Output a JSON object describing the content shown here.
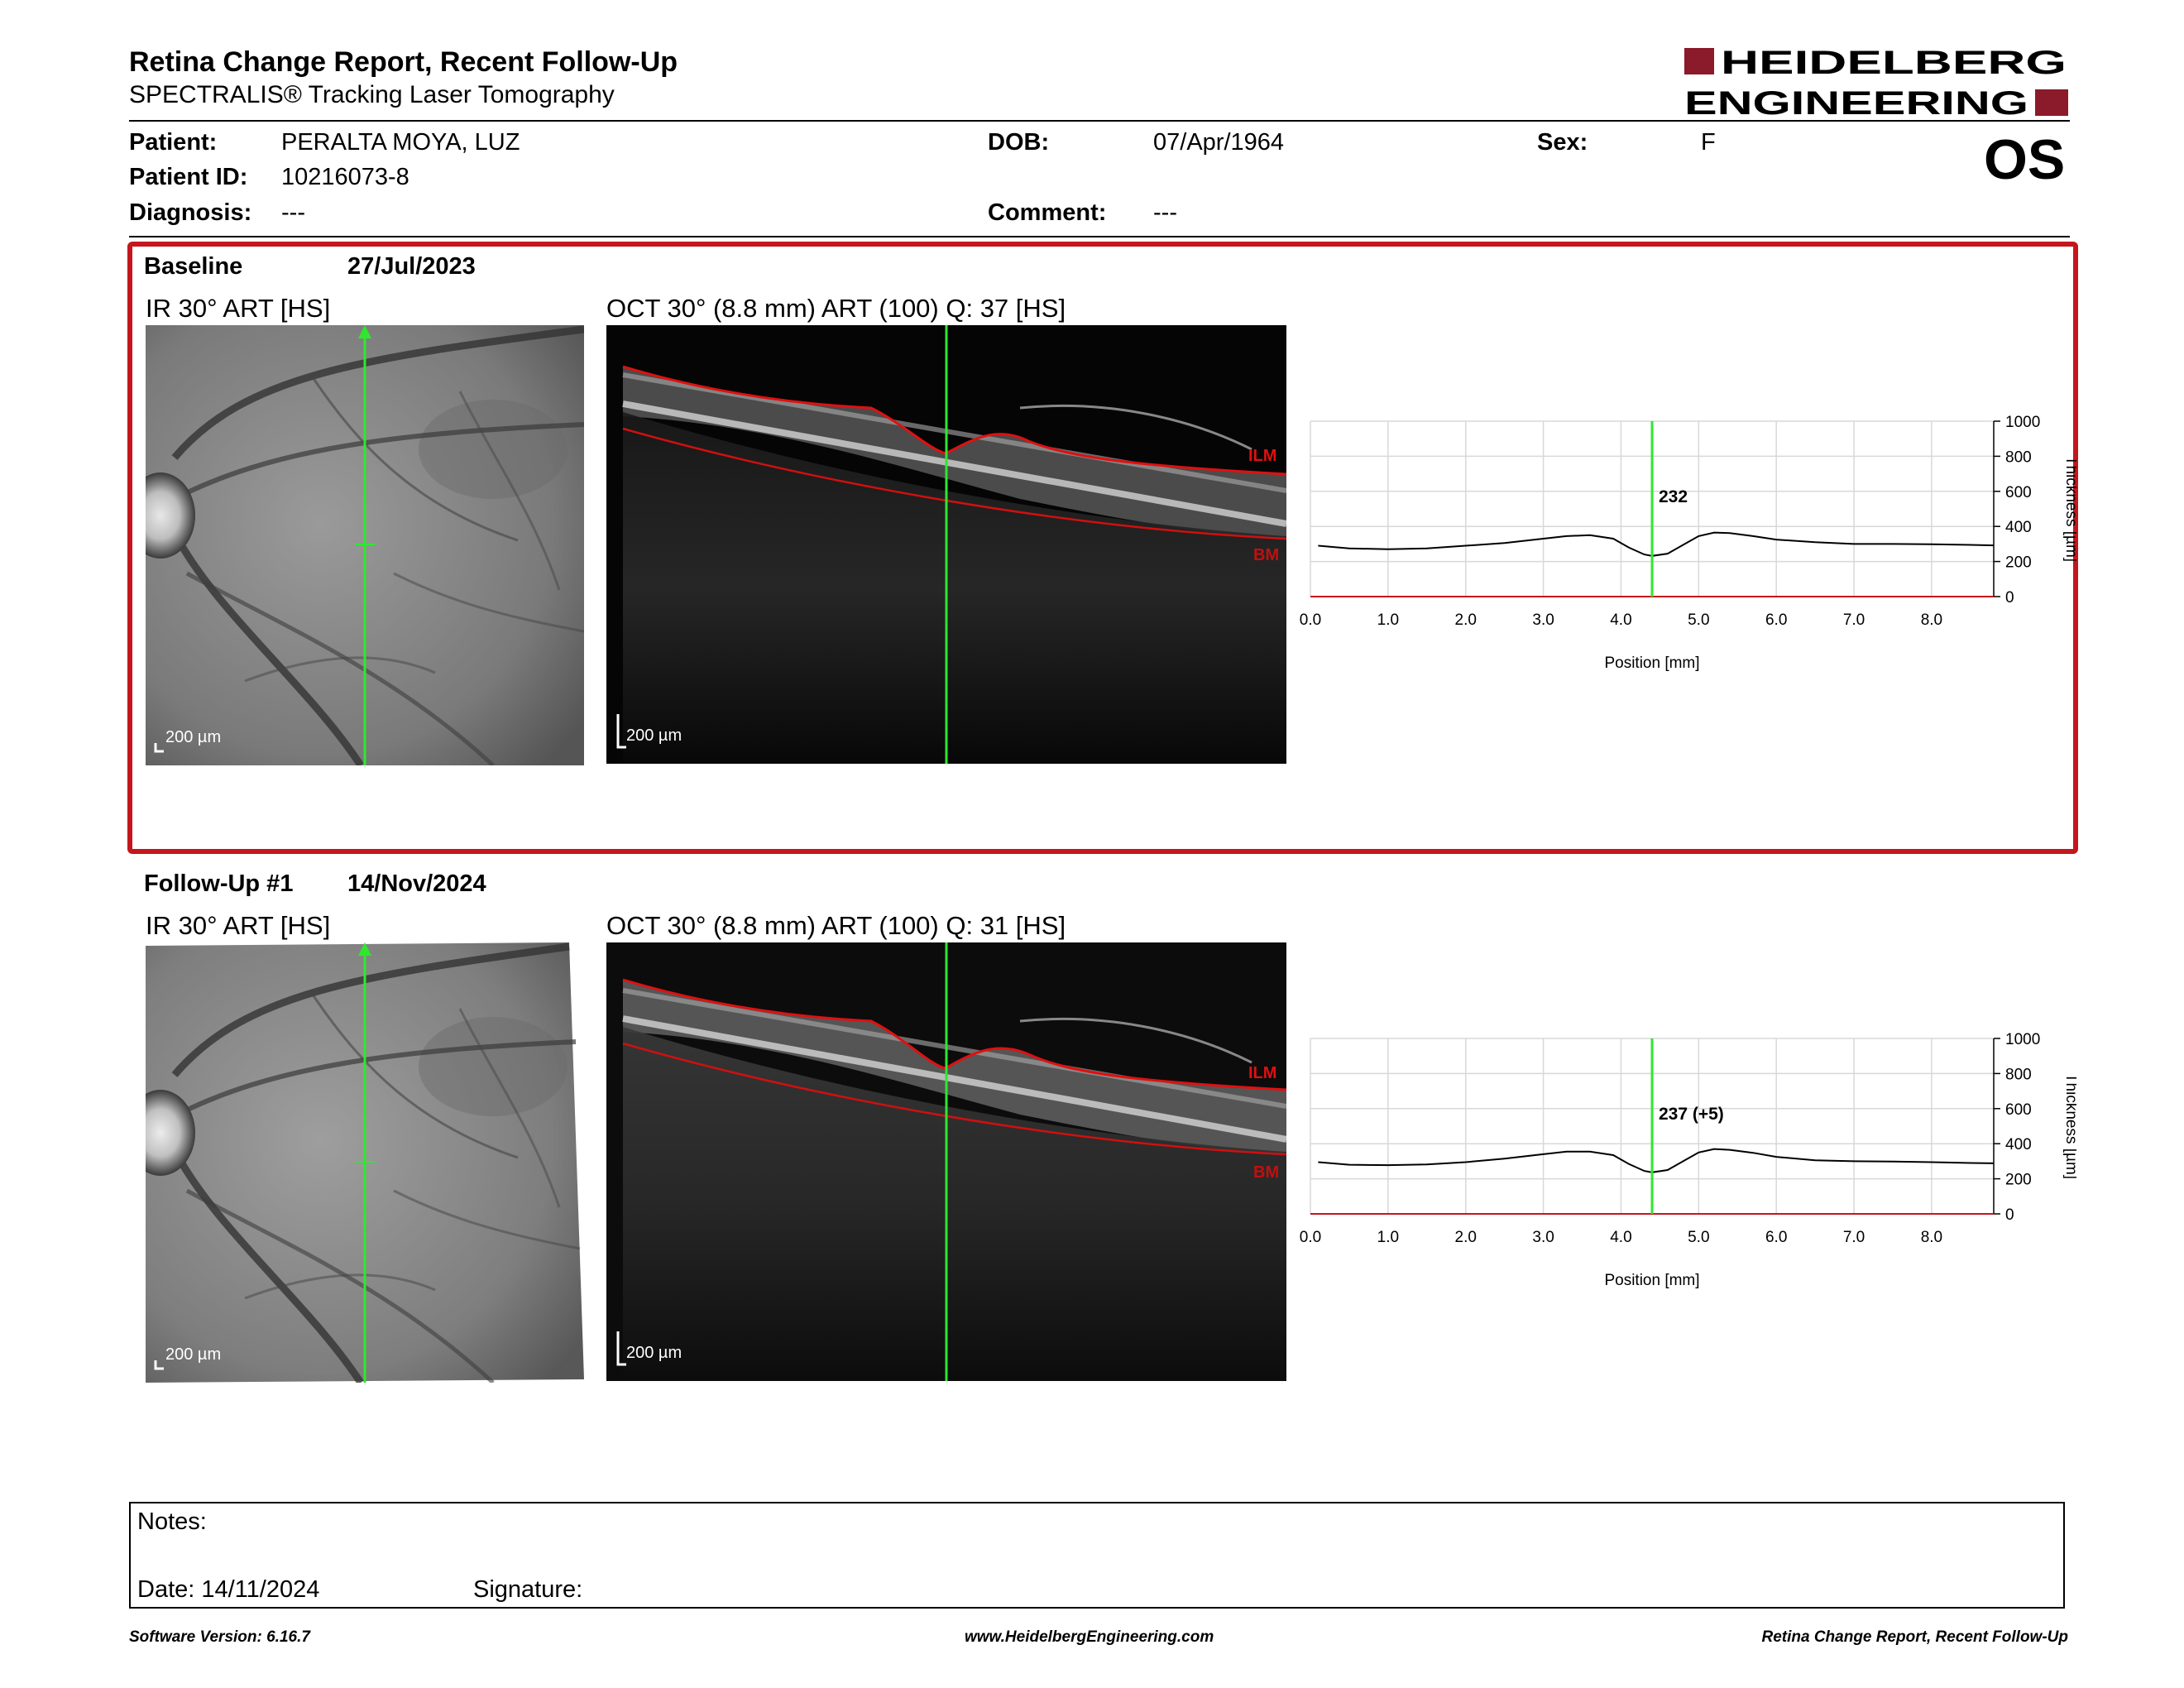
{
  "header": {
    "title": "Retina Change Report, Recent Follow-Up",
    "subtitle": "SPECTRALIS® Tracking Laser Tomography",
    "logo_line1": "HEIDELBERG",
    "logo_line2": "ENGINEERING",
    "brand_color": "#8b1a2b"
  },
  "patient": {
    "patient_label": "Patient:",
    "patient_value": "PERALTA MOYA, LUZ",
    "id_label": "Patient ID:",
    "id_value": "10216073-8",
    "diagnosis_label": "Diagnosis:",
    "diagnosis_value": "---",
    "dob_label": "DOB:",
    "dob_value": "07/Apr/1964",
    "comment_label": "Comment:",
    "comment_value": "---",
    "sex_label": "Sex:",
    "sex_value": "F",
    "eye": "OS"
  },
  "baseline": {
    "title": "Baseline",
    "date": "27/Jul/2023",
    "ir_caption": "IR 30° ART [HS]",
    "oct_caption": "OCT 30° (8.8 mm) ART (100) Q: 37 [HS]",
    "scale_ir": "200 µm",
    "scale_oct": "200 µm",
    "ilm": "ILM",
    "bm": "BM"
  },
  "followup": {
    "title": "Follow-Up #1",
    "date": "14/Nov/2024",
    "ir_caption": "IR 30° ART [HS]",
    "oct_caption": "OCT 30° (8.8 mm) ART (100) Q: 31 [HS]",
    "scale_ir": "200 µm",
    "scale_oct": "200 µm",
    "ilm": "ILM",
    "bm": "BM"
  },
  "chart_data": [
    {
      "type": "line",
      "xlabel": "Position [mm]",
      "ylabel": "Thickness [µm]",
      "xlim": [
        0,
        8.8
      ],
      "ylim": [
        0,
        1000
      ],
      "x_ticks": [
        "0.0",
        "1.0",
        "2.0",
        "3.0",
        "4.0",
        "5.0",
        "6.0",
        "7.0",
        "8.0"
      ],
      "y_ticks": [
        "0",
        "200",
        "400",
        "600",
        "800",
        "1000"
      ],
      "marker_x": 4.4,
      "marker_label": "232",
      "x": [
        0.1,
        0.5,
        1.0,
        1.5,
        2.0,
        2.5,
        3.0,
        3.3,
        3.6,
        3.9,
        4.1,
        4.3,
        4.4,
        4.6,
        4.8,
        5.0,
        5.2,
        5.4,
        5.7,
        6.0,
        6.5,
        7.0,
        7.5,
        8.0,
        8.5,
        8.8
      ],
      "y": [
        290,
        275,
        270,
        275,
        290,
        305,
        330,
        345,
        350,
        330,
        280,
        240,
        232,
        245,
        295,
        345,
        365,
        362,
        345,
        325,
        310,
        300,
        300,
        298,
        295,
        292
      ]
    },
    {
      "type": "line",
      "xlabel": "Position [mm]",
      "ylabel": "Thickness [µm]",
      "xlim": [
        0,
        8.8
      ],
      "ylim": [
        0,
        1000
      ],
      "x_ticks": [
        "0.0",
        "1.0",
        "2.0",
        "3.0",
        "4.0",
        "5.0",
        "6.0",
        "7.0",
        "8.0"
      ],
      "y_ticks": [
        "0",
        "200",
        "400",
        "600",
        "800",
        "1000"
      ],
      "marker_x": 4.4,
      "marker_label": "237 (+5)",
      "x": [
        0.1,
        0.5,
        1.0,
        1.5,
        2.0,
        2.5,
        3.0,
        3.3,
        3.6,
        3.9,
        4.1,
        4.3,
        4.4,
        4.6,
        4.8,
        5.0,
        5.2,
        5.4,
        5.7,
        6.0,
        6.5,
        7.0,
        7.5,
        8.0,
        8.5,
        8.8
      ],
      "y": [
        295,
        280,
        278,
        282,
        295,
        315,
        340,
        355,
        355,
        335,
        285,
        245,
        237,
        250,
        300,
        350,
        370,
        365,
        348,
        325,
        305,
        300,
        298,
        295,
        290,
        288
      ]
    }
  ],
  "notes": {
    "notes_label": "Notes:",
    "date_label": "Date: 14/11/2024",
    "signature_label": "Signature:"
  },
  "footer": {
    "software": "Software Version: 6.16.7",
    "website": "www.HeidelbergEngineering.com",
    "report": "Retina Change Report, Recent Follow-Up"
  }
}
